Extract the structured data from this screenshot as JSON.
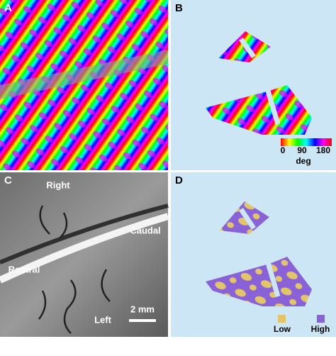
{
  "panels": [
    {
      "label": "A"
    },
    {
      "label": "B",
      "colorbar": {
        "ticks": [
          0,
          90,
          180
        ],
        "unit": "deg"
      }
    },
    {
      "label": "C",
      "annotations": [
        "Right",
        "Caudal",
        "Rostral",
        "Left"
      ],
      "scale_bar": "2 mm"
    },
    {
      "label": "D",
      "legend": [
        "Low",
        "High"
      ]
    }
  ]
}
